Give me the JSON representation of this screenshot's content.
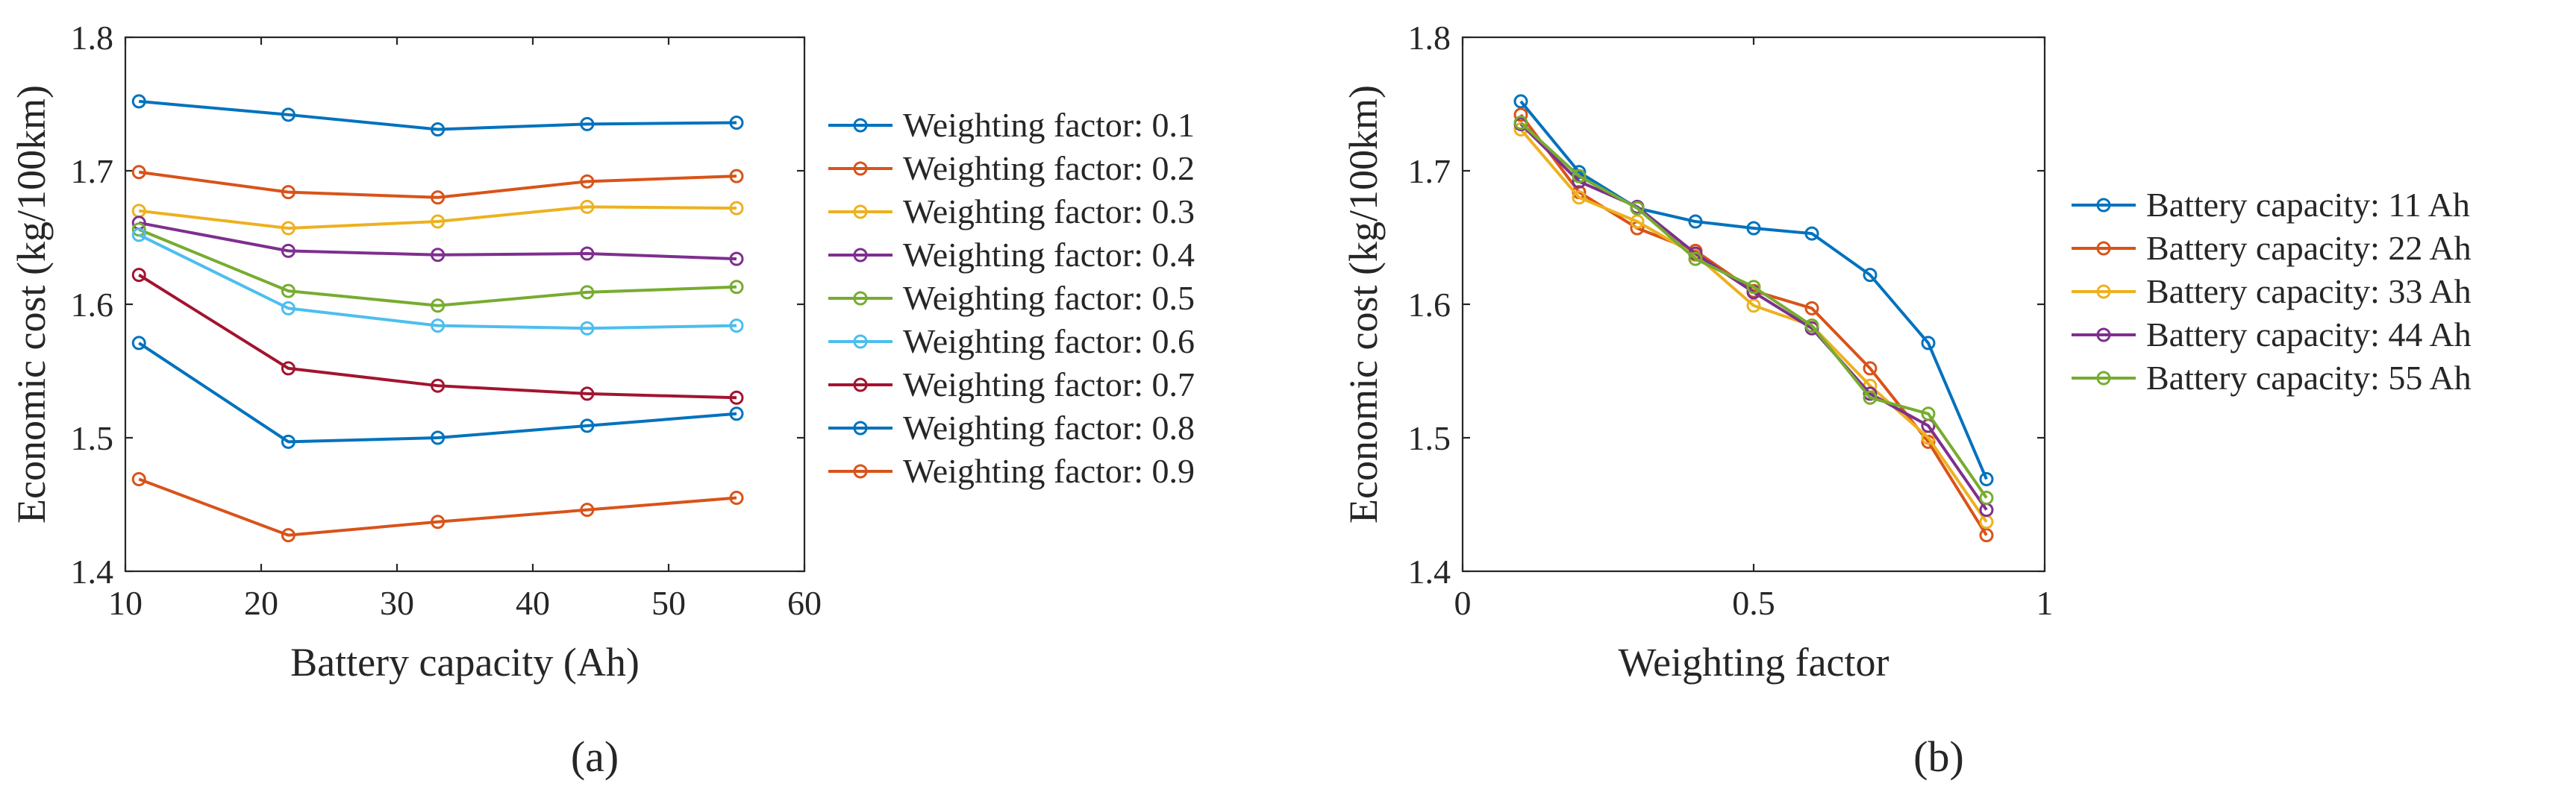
{
  "chart_data": [
    {
      "type": "line",
      "panel_label": "(a)",
      "title": "",
      "xlabel": "Battery capacity (Ah)",
      "ylabel": "Economic cost (kg/100km)",
      "xlim": [
        10,
        60
      ],
      "ylim": [
        1.4,
        1.8
      ],
      "xticks": [
        "10",
        "20",
        "30",
        "40",
        "50",
        "60"
      ],
      "yticks": [
        "1.4",
        "1.5",
        "1.6",
        "1.7",
        "1.8"
      ],
      "x": [
        11,
        22,
        33,
        44,
        55
      ],
      "legend_position": "outside-right",
      "series": [
        {
          "name": "Weighting factor: 0.1",
          "color": "#0072BD",
          "values": [
            1.752,
            1.742,
            1.731,
            1.735,
            1.736
          ]
        },
        {
          "name": "Weighting factor: 0.2",
          "color": "#D95319",
          "values": [
            1.699,
            1.684,
            1.68,
            1.692,
            1.696
          ]
        },
        {
          "name": "Weighting factor: 0.3",
          "color": "#EDB120",
          "values": [
            1.67,
            1.657,
            1.662,
            1.673,
            1.672
          ]
        },
        {
          "name": "Weighting factor: 0.4",
          "color": "#7E2F8E",
          "values": [
            1.661,
            1.64,
            1.637,
            1.638,
            1.634
          ]
        },
        {
          "name": "Weighting factor: 0.5",
          "color": "#77AC30",
          "values": [
            1.656,
            1.61,
            1.599,
            1.609,
            1.613
          ]
        },
        {
          "name": "Weighting factor: 0.6",
          "color": "#4DBEEE",
          "values": [
            1.652,
            1.597,
            1.584,
            1.582,
            1.584
          ]
        },
        {
          "name": "Weighting factor: 0.7",
          "color": "#A2142F",
          "values": [
            1.622,
            1.552,
            1.539,
            1.533,
            1.53
          ]
        },
        {
          "name": "Weighting factor: 0.8",
          "color": "#0072BD",
          "values": [
            1.571,
            1.497,
            1.5,
            1.509,
            1.518
          ]
        },
        {
          "name": "Weighting factor: 0.9",
          "color": "#D95319",
          "values": [
            1.469,
            1.427,
            1.437,
            1.446,
            1.455
          ]
        }
      ]
    },
    {
      "type": "line",
      "panel_label": "(b)",
      "title": "",
      "xlabel": "Weighting factor",
      "ylabel": "Economic cost (kg/100km)",
      "xlim": [
        0,
        1
      ],
      "ylim": [
        1.4,
        1.8
      ],
      "xticks": [
        "0",
        "0.5",
        "1"
      ],
      "yticks": [
        "1.4",
        "1.5",
        "1.6",
        "1.7",
        "1.8"
      ],
      "x": [
        0.1,
        0.2,
        0.3,
        0.4,
        0.5,
        0.6,
        0.7,
        0.8,
        0.9
      ],
      "legend_position": "outside-right",
      "series": [
        {
          "name": "Battery capacity: 11 Ah",
          "color": "#0072BD",
          "values": [
            1.752,
            1.699,
            1.672,
            1.662,
            1.657,
            1.653,
            1.622,
            1.571,
            1.469
          ]
        },
        {
          "name": "Battery capacity: 22 Ah",
          "color": "#D95319",
          "values": [
            1.742,
            1.684,
            1.657,
            1.64,
            1.61,
            1.597,
            1.552,
            1.497,
            1.427
          ]
        },
        {
          "name": "Battery capacity: 33 Ah",
          "color": "#EDB120",
          "values": [
            1.731,
            1.68,
            1.662,
            1.637,
            1.599,
            1.584,
            1.539,
            1.5,
            1.437
          ]
        },
        {
          "name": "Battery capacity: 44 Ah",
          "color": "#7E2F8E",
          "values": [
            1.735,
            1.692,
            1.673,
            1.638,
            1.609,
            1.582,
            1.533,
            1.509,
            1.446
          ]
        },
        {
          "name": "Battery capacity: 55 Ah",
          "color": "#77AC30",
          "values": [
            1.736,
            1.696,
            1.672,
            1.634,
            1.613,
            1.584,
            1.53,
            1.518,
            1.455
          ]
        }
      ]
    }
  ]
}
